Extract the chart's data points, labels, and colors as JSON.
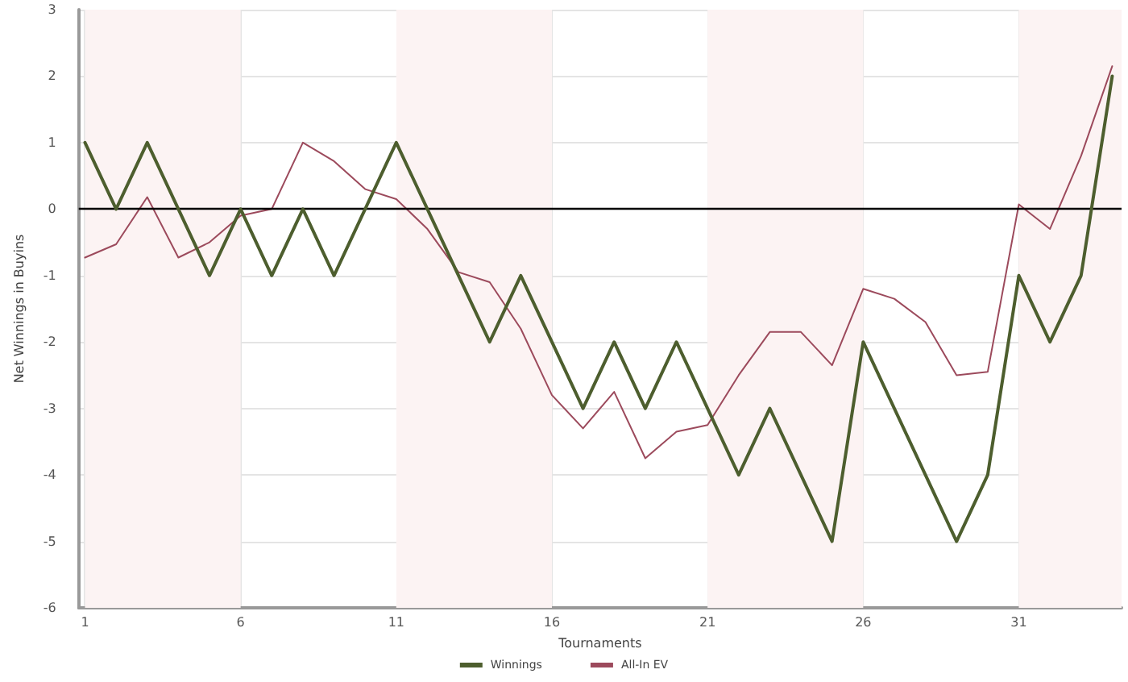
{
  "chart_data": {
    "type": "line",
    "xlabel": "Tournaments",
    "ylabel": "Net Winnings in Buyins",
    "x": [
      1,
      2,
      3,
      4,
      5,
      6,
      7,
      8,
      9,
      10,
      11,
      12,
      13,
      14,
      15,
      16,
      17,
      18,
      19,
      20,
      21,
      22,
      23,
      24,
      25,
      26,
      27,
      28,
      29,
      30,
      31,
      32,
      33,
      34
    ],
    "series": [
      {
        "name": "Winnings",
        "color": "#4d5e2e",
        "values": [
          1,
          0,
          1,
          0,
          -1,
          0,
          -1,
          0,
          -1,
          0,
          1,
          0,
          -1,
          -2,
          -1,
          -2,
          -3,
          -2,
          -3,
          -2,
          -3,
          -4,
          -3,
          -4,
          -5,
          -2,
          -3,
          -4,
          -5,
          -4,
          -1,
          -2,
          -1,
          2
        ]
      },
      {
        "name": "All-In EV",
        "color": "#9c4a5c",
        "values": [
          -0.73,
          -0.53,
          0.18,
          -0.73,
          -0.5,
          -0.1,
          0,
          1,
          0.72,
          0.3,
          0.15,
          -0.3,
          -0.95,
          -1.1,
          -1.8,
          -2.8,
          -3.3,
          -2.75,
          -3.75,
          -3.35,
          -3.25,
          -2.5,
          -1.85,
          -1.85,
          -2.35,
          -1.2,
          -1.35,
          -1.7,
          -2.5,
          -2.45,
          0.07,
          -0.3,
          0.8,
          2.15
        ]
      }
    ],
    "xlim": [
      0.8,
      34.3
    ],
    "xticks": [
      1,
      6,
      11,
      16,
      21,
      26,
      31
    ],
    "ylim": [
      -6,
      3
    ],
    "yticks": [
      -6,
      -5,
      -4,
      -3,
      -2,
      -1,
      0,
      1,
      2,
      3
    ],
    "ref_lines": [
      {
        "axis": "y",
        "value": 0,
        "color": "#000000"
      }
    ],
    "bands": [
      {
        "axis": "x",
        "from": 1,
        "to": 6,
        "color": "#fcf3f3"
      },
      {
        "axis": "x",
        "from": 11,
        "to": 16,
        "color": "#fcf3f3"
      },
      {
        "axis": "x",
        "from": 21,
        "to": 26,
        "color": "#fcf3f3"
      },
      {
        "axis": "x",
        "from": 31,
        "to": 34.3,
        "color": "#fcf3f3"
      }
    ],
    "grid": true,
    "legend": "bottom",
    "marker": "none",
    "line_style": "solid"
  }
}
